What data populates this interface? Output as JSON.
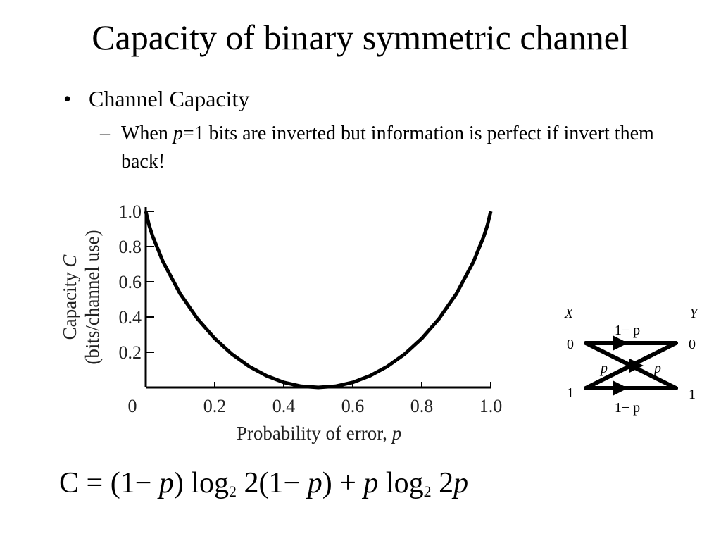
{
  "slide": {
    "title": "Capacity of binary symmetric channel",
    "bullet1": "Channel Capacity",
    "bullet2": {
      "prefix": "When ",
      "var": "p",
      "rest": "=1 bits are inverted but information is perfect if invert them back!"
    }
  },
  "chart_data": {
    "type": "line",
    "xlabel_text": "Probability of error, ",
    "xlabel_var": "p",
    "ylabel_line1": "Capacity ",
    "ylabel_var": "C",
    "ylabel_line2": "(bits/channel use)",
    "xlim": [
      0,
      1
    ],
    "ylim": [
      0,
      1
    ],
    "x_ticks": [
      "0",
      "0.2",
      "0.4",
      "0.6",
      "0.8",
      "1.0"
    ],
    "y_ticks": [
      "0.2",
      "0.4",
      "0.6",
      "0.8",
      "1.0"
    ],
    "grid": false,
    "series": [
      {
        "x": [
          0.0,
          0.01,
          0.02,
          0.05,
          0.1,
          0.15,
          0.2,
          0.25,
          0.3,
          0.35,
          0.4,
          0.45,
          0.5,
          0.55,
          0.6,
          0.65,
          0.7,
          0.75,
          0.8,
          0.85,
          0.9,
          0.95,
          0.98,
          0.99,
          1.0
        ],
        "y": [
          1.0,
          0.919,
          0.859,
          0.714,
          0.531,
          0.39,
          0.278,
          0.189,
          0.119,
          0.066,
          0.029,
          0.007,
          0.0,
          0.007,
          0.029,
          0.066,
          0.119,
          0.189,
          0.278,
          0.39,
          0.531,
          0.714,
          0.859,
          0.919,
          1.0
        ]
      }
    ]
  },
  "channel_diagram": {
    "input_label": "X",
    "output_label": "Y",
    "in0": "0",
    "in1": "1",
    "out0": "0",
    "out1": "1",
    "top_prob": "1− p",
    "bottom_prob": "1− p",
    "cross_left": "p",
    "cross_right": "p"
  },
  "formula": {
    "c": "C",
    "eq": " = (1− ",
    "p1": "p",
    "part2": ") log",
    "sub1": "2",
    "part3": " 2(1− ",
    "p2": "p",
    "part4": ") + ",
    "p3": "p",
    "part5": " log",
    "sub2": "2",
    "part6": " 2",
    "p4": "p"
  }
}
